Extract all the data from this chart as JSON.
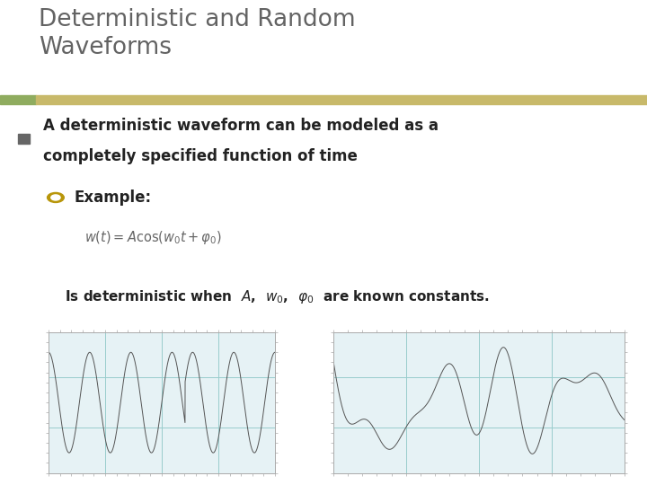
{
  "title": "Deterministic and Random\nWaveforms",
  "title_color": "#636363",
  "title_bar_colors": [
    "#8fac5f",
    "#c8b96a"
  ],
  "background_color": "#ffffff",
  "bullet_text_line1": "A deterministic waveform can be modeled as a",
  "bullet_text_line2": "completely specified function of time",
  "sub_bullet": "Example:",
  "formula": "$w(t) = A\\cos(w_0t + \\varphi_0)$",
  "constants_text": "Is deterministic when",
  "constants_text2": "are known constants.",
  "plot_bg": "#e6f2f5",
  "plot_grid_color": "#99cccc",
  "plot_line_color": "#555555",
  "plot_border_color": "#aaaaaa",
  "bullet_color": "#666666",
  "text_color": "#222222",
  "formula_color": "#666666"
}
